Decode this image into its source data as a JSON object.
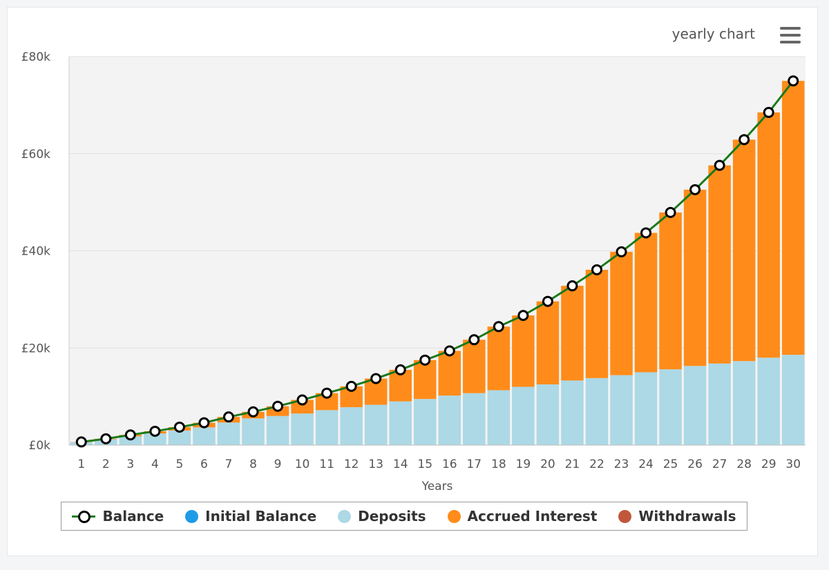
{
  "header": {
    "title": "yearly chart",
    "menu_icon": "hamburger-menu-icon"
  },
  "colors": {
    "deposits": "#add8e6",
    "interest": "#ff8c1a",
    "initial": "#1e9be8",
    "withdrawals": "#c1573a",
    "balance_line": "#1a7a1a",
    "plot_bg": "#f3f3f3"
  },
  "chart_data": {
    "type": "bar",
    "stacked": true,
    "title": "yearly chart",
    "xlabel": "Years",
    "ylabel": "",
    "ylim": [
      0,
      80000
    ],
    "y_ticks": [
      0,
      20000,
      40000,
      60000,
      80000
    ],
    "y_tick_labels": [
      "£0k",
      "£20k",
      "£40k",
      "£60k",
      "£80k"
    ],
    "categories": [
      "1",
      "2",
      "3",
      "4",
      "5",
      "6",
      "7",
      "8",
      "9",
      "10",
      "11",
      "12",
      "13",
      "14",
      "15",
      "16",
      "17",
      "18",
      "19",
      "20",
      "21",
      "22",
      "23",
      "24",
      "25",
      "26",
      "27",
      "28",
      "29",
      "30"
    ],
    "series": [
      {
        "name": "Deposits",
        "type": "bar",
        "values": [
          600,
          1200,
          1800,
          2400,
          3000,
          3650,
          4650,
          5500,
          6000,
          6500,
          7200,
          7800,
          8300,
          9000,
          9500,
          10200,
          10700,
          11300,
          12000,
          12500,
          13300,
          13800,
          14400,
          15000,
          15600,
          16300,
          16800,
          17300,
          18000,
          18600
        ]
      },
      {
        "name": "Accrued Interest",
        "type": "bar",
        "values": [
          50,
          100,
          300,
          450,
          700,
          950,
          1150,
          1350,
          2000,
          2800,
          3500,
          4300,
          5400,
          6500,
          8000,
          9200,
          11000,
          13100,
          14700,
          17100,
          19500,
          22300,
          25400,
          28700,
          32300,
          36300,
          40800,
          45600,
          50500,
          56400
        ]
      },
      {
        "name": "Balance",
        "type": "line",
        "values": [
          650,
          1300,
          2100,
          2850,
          3700,
          4600,
          5800,
          6850,
          8000,
          9300,
          10700,
          12100,
          13700,
          15500,
          17500,
          19400,
          21700,
          24400,
          26700,
          29600,
          32800,
          36100,
          39800,
          43700,
          47900,
          52600,
          57600,
          62900,
          68500,
          75000
        ]
      }
    ]
  },
  "legend": {
    "items": [
      {
        "label": "Balance",
        "marker": "line"
      },
      {
        "label": "Initial Balance",
        "marker": "dot",
        "color": "#1e9be8"
      },
      {
        "label": "Deposits",
        "marker": "dot",
        "color": "#add8e6"
      },
      {
        "label": "Accrued Interest",
        "marker": "dot",
        "color": "#ff8c1a"
      },
      {
        "label": "Withdrawals",
        "marker": "dot",
        "color": "#c1573a"
      }
    ]
  }
}
